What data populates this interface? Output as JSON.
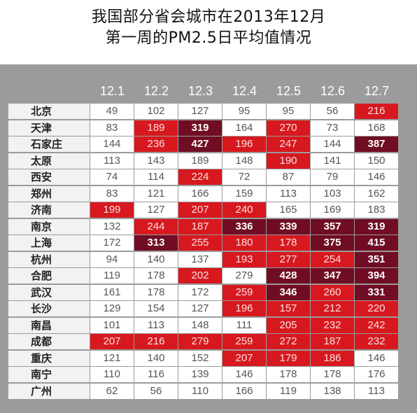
{
  "title_line1": "我国部分省会城市在2013年12月",
  "title_line2": "第一周的PM2.5日平均值情况",
  "colors": {
    "panel": "#9b9b9b",
    "low": "#ffffff",
    "high": "#d7191f",
    "severe": "#700d24"
  },
  "chart_data": {
    "type": "table",
    "title": "我国部分省会城市在2013年12月第一周的PM2.5日平均值情况",
    "columns": [
      "12.1",
      "12.2",
      "12.3",
      "12.4",
      "12.5",
      "12.6",
      "12.7"
    ],
    "rows": [
      {
        "city": "北京",
        "values": [
          49,
          102,
          127,
          95,
          95,
          56,
          216
        ],
        "levels": [
          0,
          0,
          0,
          0,
          0,
          0,
          1
        ]
      },
      {
        "city": "天津",
        "values": [
          83,
          189,
          319,
          164,
          270,
          73,
          168
        ],
        "levels": [
          0,
          1,
          2,
          0,
          1,
          0,
          0
        ]
      },
      {
        "city": "石家庄",
        "values": [
          144,
          236,
          427,
          196,
          247,
          144,
          387
        ],
        "levels": [
          0,
          1,
          2,
          1,
          1,
          0,
          2
        ]
      },
      {
        "city": "太原",
        "values": [
          113,
          143,
          189,
          148,
          190,
          141,
          150
        ],
        "levels": [
          0,
          0,
          0,
          0,
          1,
          0,
          0
        ]
      },
      {
        "city": "西安",
        "values": [
          74,
          114,
          224,
          72,
          87,
          79,
          146
        ],
        "levels": [
          0,
          0,
          1,
          0,
          0,
          0,
          0
        ]
      },
      {
        "city": "郑州",
        "values": [
          83,
          121,
          166,
          159,
          113,
          103,
          162
        ],
        "levels": [
          0,
          0,
          0,
          0,
          0,
          0,
          0
        ]
      },
      {
        "city": "济南",
        "values": [
          199,
          127,
          207,
          240,
          165,
          169,
          183
        ],
        "levels": [
          1,
          0,
          1,
          1,
          0,
          0,
          0
        ]
      },
      {
        "city": "南京",
        "values": [
          132,
          244,
          187,
          336,
          339,
          357,
          319
        ],
        "levels": [
          0,
          1,
          1,
          2,
          2,
          2,
          2
        ]
      },
      {
        "city": "上海",
        "values": [
          172,
          313,
          255,
          180,
          178,
          375,
          415
        ],
        "levels": [
          0,
          2,
          1,
          1,
          1,
          2,
          2
        ]
      },
      {
        "city": "杭州",
        "values": [
          94,
          140,
          137,
          193,
          277,
          254,
          351
        ],
        "levels": [
          0,
          0,
          0,
          1,
          1,
          1,
          2
        ]
      },
      {
        "city": "合肥",
        "values": [
          119,
          178,
          202,
          279,
          428,
          347,
          394
        ],
        "levels": [
          0,
          0,
          1,
          0,
          2,
          2,
          2
        ]
      },
      {
        "city": "武汉",
        "values": [
          161,
          178,
          172,
          259,
          346,
          260,
          331
        ],
        "levels": [
          0,
          0,
          0,
          1,
          2,
          1,
          2
        ]
      },
      {
        "city": "长沙",
        "values": [
          129,
          154,
          127,
          196,
          157,
          212,
          220
        ],
        "levels": [
          0,
          0,
          0,
          1,
          1,
          1,
          1
        ]
      },
      {
        "city": "南昌",
        "values": [
          101,
          113,
          148,
          111,
          205,
          232,
          242
        ],
        "levels": [
          0,
          0,
          0,
          0,
          1,
          1,
          1
        ]
      },
      {
        "city": "成都",
        "values": [
          207,
          216,
          279,
          259,
          272,
          187,
          232
        ],
        "levels": [
          1,
          1,
          1,
          1,
          1,
          1,
          1
        ]
      },
      {
        "city": "重庆",
        "values": [
          121,
          140,
          152,
          207,
          179,
          186,
          146
        ],
        "levels": [
          0,
          0,
          0,
          1,
          1,
          1,
          0
        ]
      },
      {
        "city": "南宁",
        "values": [
          110,
          116,
          139,
          146,
          178,
          178,
          176
        ],
        "levels": [
          0,
          0,
          0,
          0,
          0,
          0,
          0
        ]
      },
      {
        "city": "广州",
        "values": [
          62,
          56,
          110,
          166,
          119,
          138,
          113
        ],
        "levels": [
          0,
          0,
          0,
          0,
          0,
          0,
          0
        ]
      }
    ]
  }
}
